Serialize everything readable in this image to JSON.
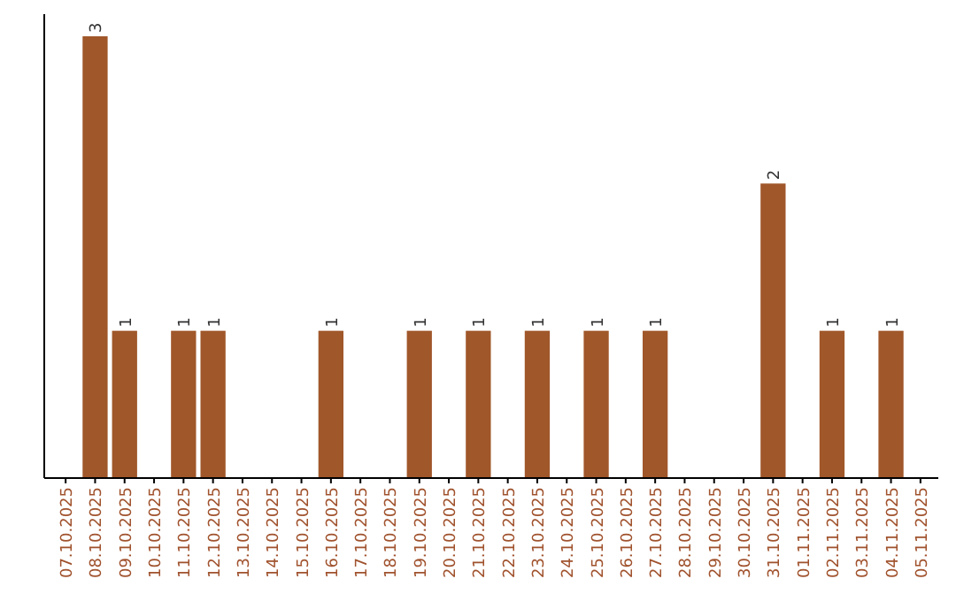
{
  "chart_data": {
    "type": "bar",
    "categories": [
      "07.10.2025",
      "08.10.2025",
      "09.10.2025",
      "10.10.2025",
      "11.10.2025",
      "12.10.2025",
      "13.10.2025",
      "14.10.2025",
      "15.10.2025",
      "16.10.2025",
      "17.10.2025",
      "18.10.2025",
      "19.10.2025",
      "20.10.2025",
      "21.10.2025",
      "22.10.2025",
      "23.10.2025",
      "24.10.2025",
      "25.10.2025",
      "26.10.2025",
      "27.10.2025",
      "28.10.2025",
      "29.10.2025",
      "30.10.2025",
      "31.10.2025",
      "01.11.2025",
      "02.11.2025",
      "03.11.2025",
      "04.11.2025",
      "05.11.2025"
    ],
    "values": [
      0,
      3,
      1,
      0,
      1,
      1,
      0,
      0,
      0,
      1,
      0,
      0,
      1,
      0,
      1,
      0,
      1,
      0,
      1,
      0,
      1,
      0,
      0,
      0,
      2,
      0,
      1,
      0,
      1,
      0
    ],
    "value_labels": [
      null,
      "3",
      "1",
      null,
      "1",
      "1",
      null,
      null,
      null,
      "1",
      null,
      null,
      "1",
      null,
      "1",
      null,
      "1",
      null,
      "1",
      null,
      "1",
      null,
      null,
      null,
      "2",
      null,
      "1",
      null,
      "1",
      null
    ],
    "color": "#a0572a",
    "ylim": [
      0,
      3.15
    ],
    "tick_labels": "x"
  }
}
